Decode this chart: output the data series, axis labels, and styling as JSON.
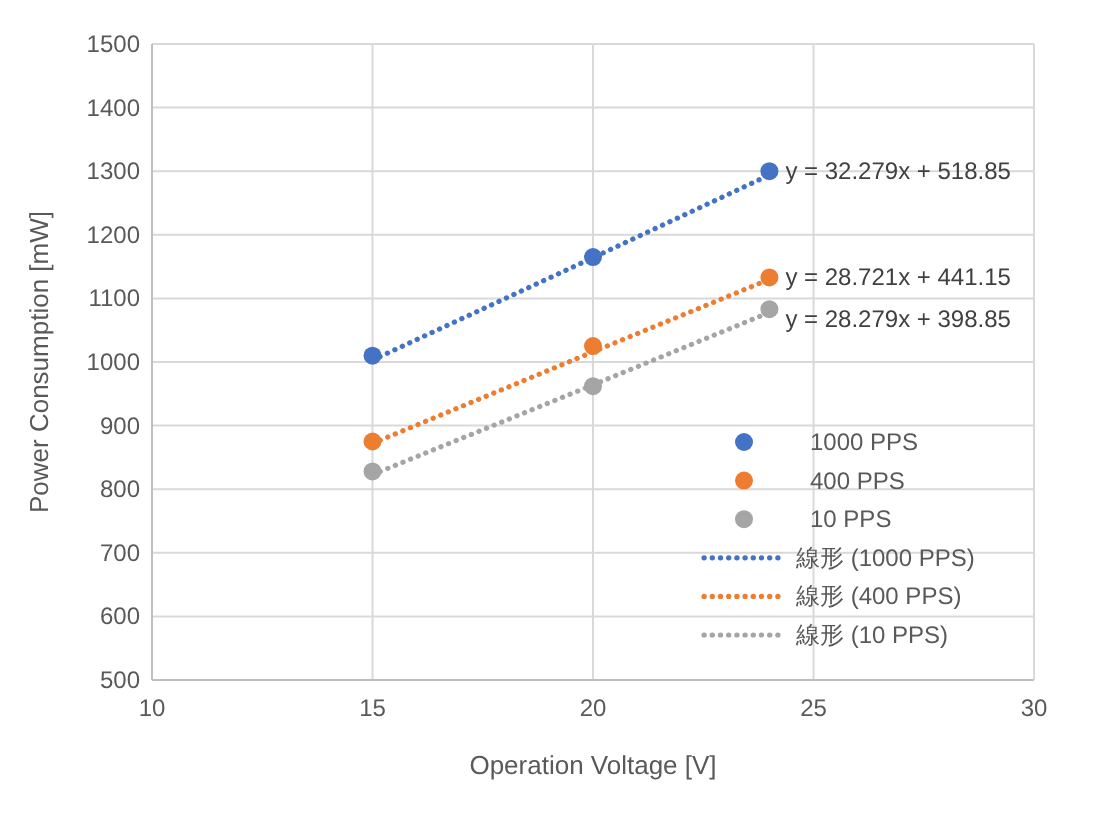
{
  "chart_data": {
    "type": "scatter",
    "xlabel": "Operation Voltage [V]",
    "ylabel": "Power Consumption  [mW]",
    "xlim": [
      10,
      30
    ],
    "xticks": [
      10,
      15,
      20,
      25,
      30
    ],
    "ylim": [
      500,
      1500
    ],
    "yticks": [
      500,
      600,
      700,
      800,
      900,
      1000,
      1100,
      1200,
      1300,
      1400,
      1500
    ],
    "grid": true,
    "legend": "right",
    "marker": "circle",
    "x": [
      15,
      20,
      24
    ],
    "series": [
      {
        "name": "1000 PPS",
        "color": "#4472c4",
        "values": [
          1010,
          1165,
          1300
        ]
      },
      {
        "name": "400 PPS",
        "color": "#ed7d31",
        "values": [
          875,
          1025,
          1133
        ]
      },
      {
        "name": "10 PPS",
        "color": "#a5a5a5",
        "values": [
          828,
          962,
          1083
        ]
      },
      {
        "name": "線形 (1000 PPS)",
        "type": "line",
        "line_style": "dotted",
        "marker": "none",
        "color": "#4472c4",
        "values": [
          1003,
          1164,
          1294
        ]
      },
      {
        "name": "線形 (400 PPS)",
        "type": "line",
        "line_style": "dotted",
        "marker": "none",
        "color": "#ed7d31",
        "values": [
          872,
          1016,
          1130
        ]
      },
      {
        "name": "線形 (10 PPS)",
        "type": "line",
        "line_style": "dotted",
        "marker": "none",
        "color": "#a5a5a5",
        "values": [
          823,
          964,
          1078
        ]
      }
    ],
    "annotations": [
      "y = 32.279x + 518.85",
      "y = 28.721x + 441.15",
      "y = 28.279x + 398.85"
    ]
  }
}
